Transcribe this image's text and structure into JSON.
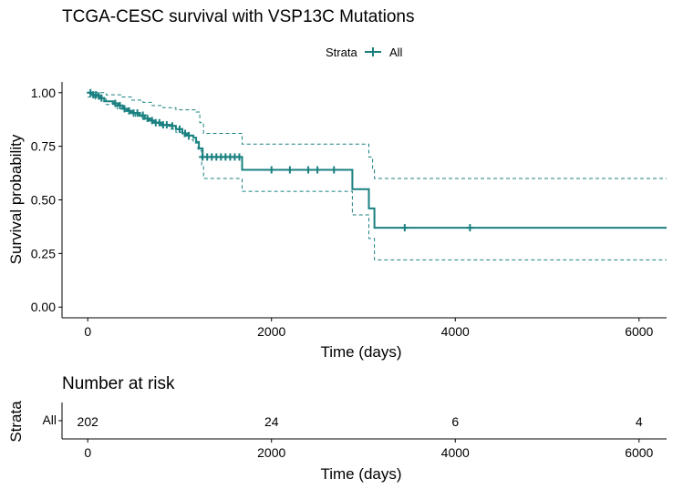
{
  "chart_data": [
    {
      "type": "line",
      "title": "TCGA-CESC survival with VSP13C Mutations",
      "xlabel": "Time (days)",
      "ylabel": "Survival probability",
      "xlim": [
        -280,
        6300
      ],
      "ylim": [
        -0.05,
        1.05
      ],
      "x_ticks": [
        0,
        2000,
        4000,
        6000
      ],
      "x_tick_labels": [
        "0",
        "2000",
        "4000",
        "6000"
      ],
      "y_ticks": [
        0,
        0.25,
        0.5,
        0.75,
        1.0
      ],
      "y_tick_labels": [
        "0.00",
        "0.25",
        "0.50",
        "0.75",
        "1.00"
      ],
      "grid": false,
      "legend": {
        "position": "top",
        "title": "Strata",
        "entries": [
          "All"
        ]
      },
      "series": [
        {
          "name": "All",
          "color": "#1a8080",
          "step": [
            [
              0,
              1.0
            ],
            [
              40,
              0.99
            ],
            [
              80,
              0.985
            ],
            [
              130,
              0.975
            ],
            [
              180,
              0.96
            ],
            [
              280,
              0.95
            ],
            [
              330,
              0.94
            ],
            [
              380,
              0.925
            ],
            [
              430,
              0.915
            ],
            [
              480,
              0.905
            ],
            [
              560,
              0.895
            ],
            [
              620,
              0.88
            ],
            [
              660,
              0.87
            ],
            [
              720,
              0.86
            ],
            [
              800,
              0.85
            ],
            [
              900,
              0.845
            ],
            [
              960,
              0.83
            ],
            [
              1030,
              0.81
            ],
            [
              1080,
              0.8
            ],
            [
              1150,
              0.79
            ],
            [
              1180,
              0.77
            ],
            [
              1210,
              0.74
            ],
            [
              1250,
              0.7
            ],
            [
              1680,
              0.7
            ],
            [
              1680,
              0.64
            ],
            [
              2880,
              0.64
            ],
            [
              2880,
              0.55
            ],
            [
              3060,
              0.55
            ],
            [
              3060,
              0.46
            ],
            [
              3120,
              0.46
            ],
            [
              3120,
              0.37
            ],
            [
              6300,
              0.37
            ]
          ],
          "upper": [
            [
              0,
              1.0
            ],
            [
              120,
              1.0
            ],
            [
              200,
              0.99
            ],
            [
              360,
              0.98
            ],
            [
              480,
              0.965
            ],
            [
              600,
              0.955
            ],
            [
              700,
              0.94
            ],
            [
              820,
              0.93
            ],
            [
              960,
              0.92
            ],
            [
              1180,
              0.91
            ],
            [
              1220,
              0.86
            ],
            [
              1260,
              0.81
            ],
            [
              1320,
              0.81
            ],
            [
              1680,
              0.81
            ],
            [
              1680,
              0.76
            ],
            [
              2920,
              0.76
            ],
            [
              3060,
              0.7
            ],
            [
              3100,
              0.64
            ],
            [
              3120,
              0.6
            ],
            [
              6300,
              0.6
            ]
          ],
          "lower": [
            [
              0,
              0.98
            ],
            [
              80,
              0.97
            ],
            [
              200,
              0.945
            ],
            [
              320,
              0.925
            ],
            [
              440,
              0.91
            ],
            [
              520,
              0.89
            ],
            [
              600,
              0.875
            ],
            [
              700,
              0.86
            ],
            [
              800,
              0.845
            ],
            [
              900,
              0.83
            ],
            [
              960,
              0.815
            ],
            [
              1050,
              0.795
            ],
            [
              1100,
              0.78
            ],
            [
              1150,
              0.765
            ],
            [
              1200,
              0.73
            ],
            [
              1240,
              0.66
            ],
            [
              1260,
              0.6
            ],
            [
              1680,
              0.6
            ],
            [
              1680,
              0.54
            ],
            [
              2880,
              0.54
            ],
            [
              2880,
              0.43
            ],
            [
              3060,
              0.43
            ],
            [
              3060,
              0.32
            ],
            [
              3120,
              0.32
            ],
            [
              3120,
              0.22
            ],
            [
              6300,
              0.22
            ]
          ],
          "censor": [
            [
              30,
              1.0
            ],
            [
              60,
              0.99
            ],
            [
              90,
              0.99
            ],
            [
              120,
              0.985
            ],
            [
              150,
              0.975
            ],
            [
              300,
              0.95
            ],
            [
              350,
              0.94
            ],
            [
              400,
              0.925
            ],
            [
              450,
              0.915
            ],
            [
              500,
              0.905
            ],
            [
              540,
              0.905
            ],
            [
              600,
              0.895
            ],
            [
              650,
              0.88
            ],
            [
              700,
              0.87
            ],
            [
              740,
              0.86
            ],
            [
              780,
              0.86
            ],
            [
              820,
              0.85
            ],
            [
              860,
              0.85
            ],
            [
              920,
              0.845
            ],
            [
              1000,
              0.83
            ],
            [
              1060,
              0.81
            ],
            [
              1100,
              0.8
            ],
            [
              1250,
              0.7
            ],
            [
              1300,
              0.7
            ],
            [
              1350,
              0.7
            ],
            [
              1400,
              0.7
            ],
            [
              1450,
              0.7
            ],
            [
              1500,
              0.7
            ],
            [
              1550,
              0.7
            ],
            [
              1600,
              0.7
            ],
            [
              1650,
              0.7
            ],
            [
              2000,
              0.64
            ],
            [
              2200,
              0.64
            ],
            [
              2400,
              0.64
            ],
            [
              2500,
              0.64
            ],
            [
              2680,
              0.64
            ],
            [
              3450,
              0.37
            ],
            [
              4160,
              0.37
            ]
          ]
        }
      ]
    },
    {
      "type": "table",
      "title": "Number at risk",
      "xlabel": "Time (days)",
      "ylabel": "Strata",
      "row_label": "All",
      "row_color": "#1a8080",
      "x_ticks": [
        0,
        2000,
        4000,
        6000
      ],
      "x_tick_labels": [
        "0",
        "2000",
        "4000",
        "6000"
      ],
      "values": [
        {
          "x": 0,
          "n": "202"
        },
        {
          "x": 2000,
          "n": "24"
        },
        {
          "x": 4000,
          "n": "6"
        },
        {
          "x": 6000,
          "n": "4"
        }
      ]
    }
  ]
}
